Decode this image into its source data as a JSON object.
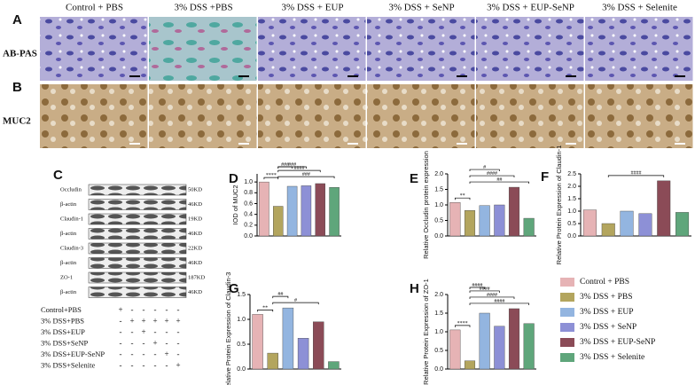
{
  "columns": [
    "Control + PBS",
    "3% DSS +PBS",
    "3% DSS + EUP",
    "3% DSS + SeNP",
    "3% DSS + EUP-SeNP",
    "3% DSS + Selenite"
  ],
  "rows": [
    {
      "letter": "A",
      "label": "AB-PAS"
    },
    {
      "letter": "B",
      "label": "MUC2"
    }
  ],
  "blot": {
    "letter": "C",
    "bands": [
      {
        "name": "Occludin",
        "size": "50KD"
      },
      {
        "name": "β-actin",
        "size": "46KD"
      },
      {
        "name": "Claudin-1",
        "size": "19KD"
      },
      {
        "name": "β-actin",
        "size": "46KD"
      },
      {
        "name": "Claudin-3",
        "size": "22KD"
      },
      {
        "name": "β-actin",
        "size": "46KD"
      },
      {
        "name": "ZO-1",
        "size": "187KD"
      },
      {
        "name": "β-actin",
        "size": "46KD"
      }
    ],
    "treatments": [
      {
        "name": "Control+PBS",
        "signs": [
          "+",
          "-",
          "-",
          "-",
          "-",
          "-"
        ]
      },
      {
        "name": "3% DSS+PBS",
        "signs": [
          "-",
          "+",
          "+",
          "+",
          "+",
          "+"
        ]
      },
      {
        "name": "3% DSS+EUP",
        "signs": [
          "-",
          "-",
          "+",
          "-",
          "-",
          "-"
        ]
      },
      {
        "name": "3% DSS+SeNP",
        "signs": [
          "-",
          "-",
          "-",
          "+",
          "-",
          "-"
        ]
      },
      {
        "name": "3% DSS+EUP-SeNP",
        "signs": [
          "-",
          "-",
          "-",
          "-",
          "+",
          "-"
        ]
      },
      {
        "name": "3% DSS+Selenite",
        "signs": [
          "-",
          "-",
          "-",
          "-",
          "-",
          "+"
        ]
      }
    ]
  },
  "legend": [
    {
      "name": "Control + PBS",
      "color": "#e6b3b5"
    },
    {
      "name": "3% DSS + PBS",
      "color": "#b3a55e"
    },
    {
      "name": "3% DSS + EUP",
      "color": "#93b5e0"
    },
    {
      "name": "3% DSS + SeNP",
      "color": "#8d90d6"
    },
    {
      "name": "3% DSS + EUP-SeNP",
      "color": "#8b4b57"
    },
    {
      "name": "3% DSS + Selenite",
      "color": "#5fa67b"
    }
  ],
  "chart_data": [
    {
      "type": "bar",
      "letter": "D",
      "ylabel": "IOD of MUC2",
      "values": [
        1.0,
        0.55,
        0.92,
        0.93,
        0.97,
        0.9
      ],
      "ylim": [
        0,
        1.15
      ],
      "yticks": [
        {
          "value": 0,
          "label": "0.0"
        },
        0.2,
        0.4,
        0.6,
        0.8,
        {
          "value": 1,
          "label": "1.0"
        }
      ],
      "annotations": [
        "****",
        "###",
        "###",
        "####",
        "###"
      ]
    },
    {
      "type": "bar",
      "letter": "E",
      "ylabel": "Relative Occludin protein expression",
      "values": [
        1.08,
        0.82,
        0.98,
        1.0,
        1.57,
        0.57
      ],
      "ylim": [
        0,
        2.0
      ],
      "yticks": [
        {
          "value": 0,
          "label": "0.0"
        },
        0.5,
        {
          "value": 1,
          "label": "1.0"
        },
        1.5,
        {
          "value": 2,
          "label": "2.0"
        }
      ],
      "annotations": [
        "**",
        "#",
        "####",
        "##"
      ]
    },
    {
      "type": "bar",
      "letter": "F",
      "ylabel": "Relative Protein Expression of Claudin-1",
      "values": [
        1.05,
        0.5,
        1.0,
        0.9,
        2.22,
        0.95
      ],
      "ylim": [
        0,
        2.5
      ],
      "yticks": [
        {
          "value": 0,
          "label": "0.0"
        },
        0.5,
        {
          "value": 1,
          "label": "1.0"
        },
        1.5,
        {
          "value": 2,
          "label": "2.0"
        },
        2.5
      ],
      "annotations": [
        "####"
      ]
    },
    {
      "type": "bar",
      "letter": "G",
      "ylabel": "Relative Protein Expression of Claudin-3",
      "values": [
        1.1,
        0.32,
        1.23,
        0.62,
        0.95,
        0.15
      ],
      "ylim": [
        0,
        1.5
      ],
      "yticks": [
        {
          "value": 0,
          "label": "0.0"
        },
        0.5,
        {
          "value": 1,
          "label": "1.0"
        },
        1.5
      ],
      "annotations": [
        "**",
        "##",
        "#"
      ]
    },
    {
      "type": "bar",
      "letter": "H",
      "ylabel": "Relative Protein Expression of ZO-1",
      "values": [
        1.05,
        0.22,
        1.5,
        1.15,
        1.62,
        1.22
      ],
      "ylim": [
        0,
        2.0
      ],
      "yticks": [
        {
          "value": 0,
          "label": "0.0"
        },
        0.5,
        {
          "value": 1,
          "label": "1.0"
        },
        1.5,
        {
          "value": 2,
          "label": "2.0"
        }
      ],
      "annotations": [
        "****",
        "####",
        "####",
        "####",
        "####"
      ]
    }
  ]
}
